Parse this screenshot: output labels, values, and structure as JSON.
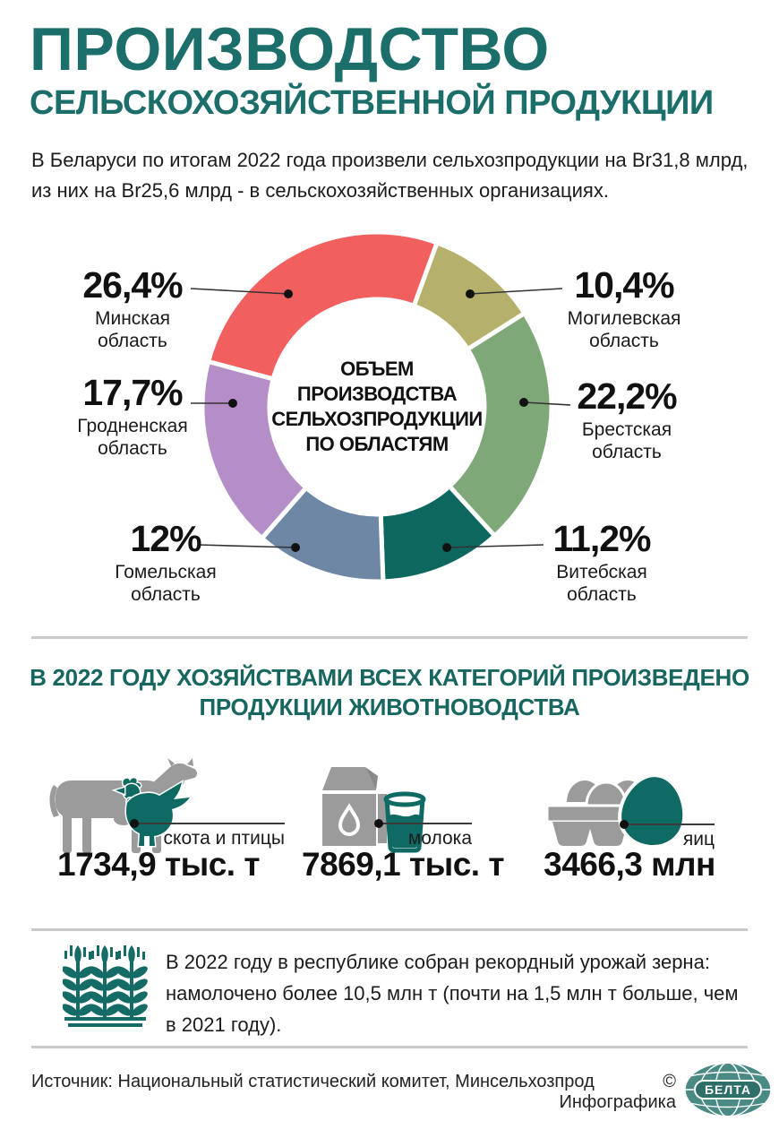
{
  "header": {
    "title_line1": "ПРОИЗВОДСТВО",
    "title_line2": "СЕЛЬСКОХОЗЯЙСТВЕННОЙ ПРОДУКЦИИ",
    "intro_line1": "В Беларуси по итогам 2022 года произвели сельхозпродукции на Br31,8 млрд,",
    "intro_line2": "из них на Br25,6 млрд - в сельскохозяйственных организациях."
  },
  "chart_data": {
    "type": "pie",
    "donut": true,
    "title": "ОБЪЕМ ПРОИЗВОДСТВА СЕЛЬХОЗПРОДУКЦИИ ПО ОБЛАСТЯМ",
    "center_label_lines": [
      "ОБЪЕМ",
      "ПРОИЗВОДСТВА",
      "СЕЛЬХОЗПРОДУКЦИИ",
      "ПО ОБЛАСТЯМ"
    ],
    "unit": "%",
    "start_angle_deg": 285,
    "segments": [
      {
        "label": "Минская область",
        "value": 26.4,
        "value_text": "26,4%",
        "color": "#f25f5f"
      },
      {
        "label": "Могилевская область",
        "value": 10.4,
        "value_text": "10,4%",
        "color": "#b5b16c"
      },
      {
        "label": "Брестская область",
        "value": 22.2,
        "value_text": "22,2%",
        "color": "#7fa879"
      },
      {
        "label": "Витебская область",
        "value": 11.2,
        "value_text": "11,2%",
        "color": "#0d675e"
      },
      {
        "label": "Гомельская область",
        "value": 12.0,
        "value_text": "12%",
        "color": "#6d87a5"
      },
      {
        "label": "Гродненская область",
        "value": 17.7,
        "value_text": "17,7%",
        "color": "#b58dc7"
      }
    ]
  },
  "livestock": {
    "heading_line1": "В 2022 ГОДУ ХОЗЯЙСТВАМИ ВСЕХ КАТЕГОРИЙ ПРОИЗВЕДЕНО",
    "heading_line2": "ПРОДУКЦИИ ЖИВОТНОВОДСТВА",
    "stats": [
      {
        "icon": "cow-and-chicken-icon",
        "label": "скота и птицы",
        "value": "1734,9 тыс. т"
      },
      {
        "icon": "milk-icon",
        "label": "молока",
        "value": "7869,1 тыс. т"
      },
      {
        "icon": "eggs-icon",
        "label": "яиц",
        "value": "3466,3 млн"
      }
    ]
  },
  "grain_note": {
    "line1": "В 2022 году в республике собран рекордный урожай зерна:",
    "line2": "намолочено более 10,5 млн т (почти на 1,5 млн т больше, чем",
    "line3": "в 2021 году)."
  },
  "footer": {
    "source": "Источник: Национальный статистический комитет, Минсельхозпрод",
    "credit": "© Инфографика",
    "logo_text": "БЕЛТА"
  },
  "colors": {
    "brand_teal": "#1b6e69",
    "heading_teal": "#17665f",
    "icon_teal": "#0f6a64",
    "icon_gray": "#9b9b9b",
    "divider_gray": "#c9c9c9",
    "text_black": "#1a1a1a"
  }
}
